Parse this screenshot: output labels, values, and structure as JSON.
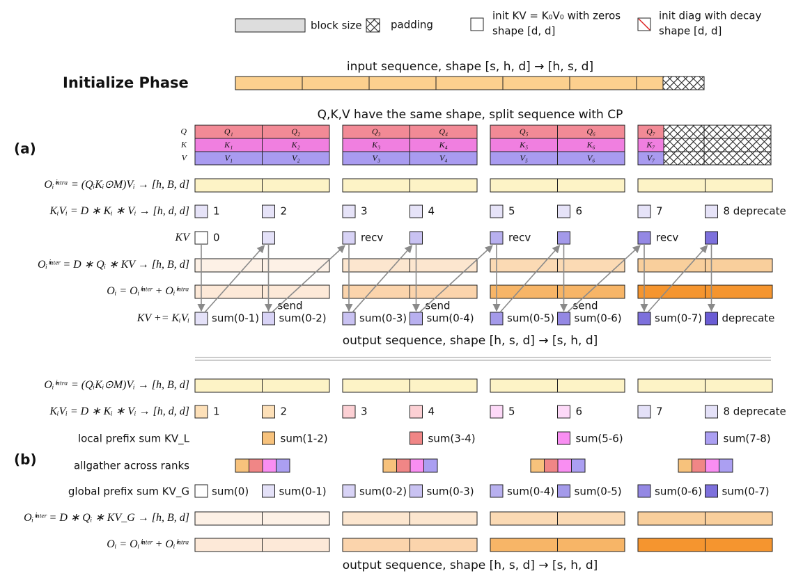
{
  "legend": {
    "block_size": "block size",
    "padding": "padding",
    "init_kv": "init KV = K₀V₀ with zeros",
    "init_kv_shape": "shape [d, d]",
    "init_diag": "init diag with decay",
    "init_diag_shape": "shape [d, d]"
  },
  "initialize": {
    "title": "Initialize Phase",
    "input": "input sequence, shape [s, h, d] → [h, s, d]"
  },
  "qkv": {
    "caption": "Q,K,V have the same shape, split sequence with CP",
    "rows": [
      {
        "label": "Q",
        "cells": [
          "Q₁",
          "Q₂",
          "Q₃",
          "Q₄",
          "Q₅",
          "Q₆",
          "Q₇"
        ]
      },
      {
        "label": "K",
        "cells": [
          "K₁",
          "K₂",
          "K₃",
          "K₄",
          "K₅",
          "K₆",
          "K₇"
        ]
      },
      {
        "label": "V",
        "cells": [
          "V₁",
          "V₂",
          "V₃",
          "V₄",
          "V₅",
          "V₆",
          "V₇"
        ]
      }
    ]
  },
  "section_a": {
    "label": "(a)",
    "intra": "Oᵢⁱⁿᵗʳᵃ = (QᵢKᵢ⊙M)Vᵢ → [h, B, d]",
    "kivi": {
      "label": "KᵢVᵢ = D ∗ Kᵢ ∗ Vᵢ → [h, d, d]",
      "items": [
        "1",
        "2",
        "3",
        "4",
        "5",
        "6",
        "7",
        "8 deprecate"
      ]
    },
    "kv": {
      "label": "KV",
      "zero": "0",
      "recv": [
        "recv",
        "recv",
        "recv"
      ]
    },
    "inter": "Oᵢⁱⁿᵗᵉʳ = D ∗ Qᵢ ∗ KV → [h, B, d]",
    "output_sum": "Oᵢ = Oᵢⁱⁿᵗᵉʳ + Oᵢⁱⁿᵗʳᵃ",
    "send": [
      "send",
      "send",
      "send"
    ],
    "accum": {
      "label": "KV += KᵢVᵢ",
      "items": [
        "sum(0-1)",
        "sum(0-2)",
        "sum(0-3)",
        "sum(0-4)",
        "sum(0-5)",
        "sum(0-6)",
        "sum(0-7)",
        "deprecate"
      ]
    },
    "output": "output sequence, shape [h, s, d] → [s, h, d]"
  },
  "section_b": {
    "label": "(b)",
    "intra": "Oᵢⁱⁿᵗʳᵃ = (QᵢKᵢ⊙M)Vᵢ → [h, B, d]",
    "kivi": {
      "label": "KᵢVᵢ = D ∗ Kᵢ ∗ Vᵢ → [h, d, d]",
      "items": [
        "1",
        "2",
        "3",
        "4",
        "5",
        "6",
        "7",
        "8 deprecate"
      ]
    },
    "local": {
      "label": "local prefix sum KV_L",
      "items": [
        "sum(1-2)",
        "sum(3-4)",
        "sum(5-6)",
        "sum(7-8)"
      ]
    },
    "allgather": "allgather across ranks",
    "global": {
      "label": "global prefix sum KV_G",
      "items": [
        "sum(0)",
        "sum(0-1)",
        "sum(0-2)",
        "sum(0-3)",
        "sum(0-4)",
        "sum(0-5)",
        "sum(0-6)",
        "sum(0-7)"
      ]
    },
    "inter": "Oᵢⁱⁿᵗᵉʳ = D ∗ Qᵢ ∗ KV_G → [h, B, d]",
    "output_sum": "Oᵢ = Oᵢⁱⁿᵗᵉʳ + Oᵢⁱⁿᵗʳᵃ",
    "output": "output sequence, shape [h, s, d] → [s, h, d]"
  }
}
